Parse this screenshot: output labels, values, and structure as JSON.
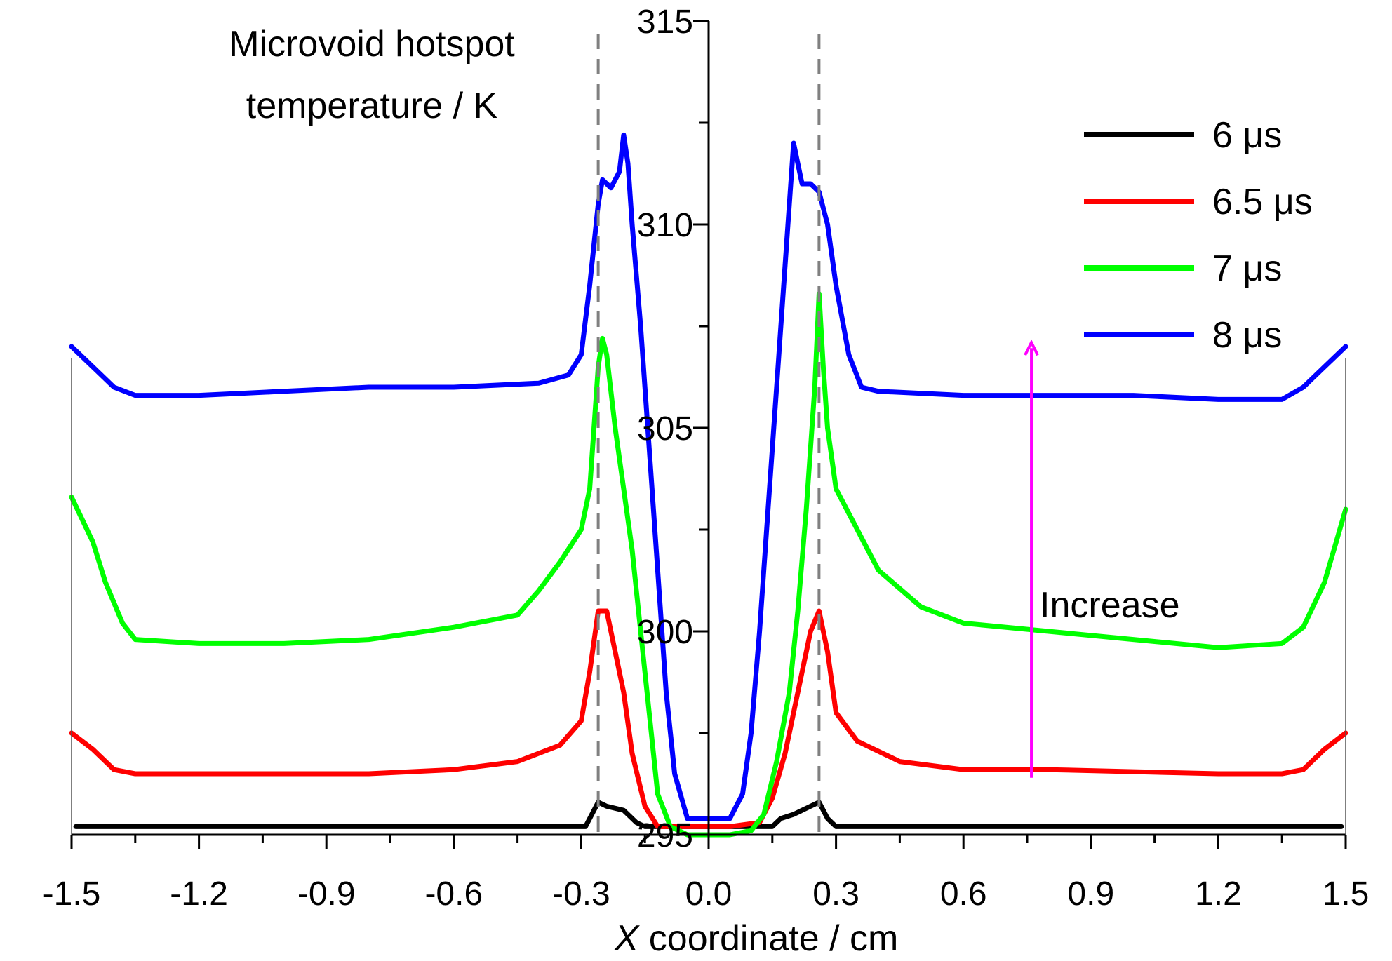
{
  "chart_data": {
    "type": "line",
    "title": "",
    "xlabel": "X coordinate / cm",
    "xlabel_italic": "X",
    "xlabel_rest": " coordinate / cm",
    "ylabel": "Microvoid hotspot temperature / K",
    "ylabel_lines": [
      "Microvoid hotspot",
      "temperature / K"
    ],
    "xlim": [
      -1.5,
      1.5
    ],
    "ylim": [
      295,
      315
    ],
    "x_ticks": [
      "-1.5",
      "-1.2",
      "-0.9",
      "-0.6",
      "-0.3",
      "0.0",
      "0.3",
      "0.6",
      "0.9",
      "1.2",
      "1.5"
    ],
    "y_ticks": [
      "295",
      "300",
      "305",
      "310",
      "315"
    ],
    "grid": false,
    "legend_position": "top-right",
    "annotation": {
      "text": "Increase",
      "arrow_color": "#ff00ff",
      "x": 0.76,
      "y_from": 296.4,
      "y_to": 307.1
    },
    "reference_lines": {
      "style": "dashed",
      "color": "#808080",
      "x": [
        -0.26,
        0.26
      ]
    },
    "series": [
      {
        "name": "6 μs",
        "color": "#000000",
        "points": [
          [
            -1.49,
            295.2
          ],
          [
            -0.29,
            295.2
          ],
          [
            -0.26,
            295.8
          ],
          [
            -0.24,
            295.7
          ],
          [
            -0.2,
            295.6
          ],
          [
            -0.17,
            295.3
          ],
          [
            -0.15,
            295.2
          ],
          [
            -0.08,
            295.2
          ],
          [
            0.08,
            295.2
          ],
          [
            0.15,
            295.2
          ],
          [
            0.17,
            295.4
          ],
          [
            0.2,
            295.5
          ],
          [
            0.24,
            295.7
          ],
          [
            0.26,
            295.8
          ],
          [
            0.28,
            295.4
          ],
          [
            0.3,
            295.2
          ],
          [
            1.49,
            295.2
          ]
        ]
      },
      {
        "name": "6.5 μs",
        "color": "#ff0000",
        "points": [
          [
            -1.5,
            297.5
          ],
          [
            -1.45,
            297.1
          ],
          [
            -1.4,
            296.6
          ],
          [
            -1.35,
            296.5
          ],
          [
            -1.2,
            296.5
          ],
          [
            -0.8,
            296.5
          ],
          [
            -0.6,
            296.6
          ],
          [
            -0.45,
            296.8
          ],
          [
            -0.35,
            297.2
          ],
          [
            -0.3,
            297.8
          ],
          [
            -0.28,
            299.0
          ],
          [
            -0.26,
            300.5
          ],
          [
            -0.24,
            300.5
          ],
          [
            -0.22,
            299.5
          ],
          [
            -0.2,
            298.5
          ],
          [
            -0.18,
            297.0
          ],
          [
            -0.15,
            295.7
          ],
          [
            -0.12,
            295.2
          ],
          [
            -0.05,
            295.2
          ],
          [
            0.05,
            295.2
          ],
          [
            0.12,
            295.3
          ],
          [
            0.15,
            295.9
          ],
          [
            0.18,
            297.0
          ],
          [
            0.2,
            298.0
          ],
          [
            0.22,
            299.0
          ],
          [
            0.24,
            300.0
          ],
          [
            0.26,
            300.5
          ],
          [
            0.28,
            299.5
          ],
          [
            0.3,
            298.0
          ],
          [
            0.35,
            297.3
          ],
          [
            0.45,
            296.8
          ],
          [
            0.6,
            296.6
          ],
          [
            0.8,
            296.6
          ],
          [
            1.2,
            296.5
          ],
          [
            1.35,
            296.5
          ],
          [
            1.4,
            296.6
          ],
          [
            1.45,
            297.1
          ],
          [
            1.5,
            297.5
          ]
        ]
      },
      {
        "name": "7 μs",
        "color": "#00ff00",
        "points": [
          [
            -1.5,
            303.3
          ],
          [
            -1.45,
            302.2
          ],
          [
            -1.42,
            301.2
          ],
          [
            -1.38,
            300.2
          ],
          [
            -1.35,
            299.8
          ],
          [
            -1.2,
            299.7
          ],
          [
            -1.0,
            299.7
          ],
          [
            -0.8,
            299.8
          ],
          [
            -0.6,
            300.1
          ],
          [
            -0.45,
            300.4
          ],
          [
            -0.4,
            301.0
          ],
          [
            -0.35,
            301.7
          ],
          [
            -0.3,
            302.5
          ],
          [
            -0.28,
            303.5
          ],
          [
            -0.27,
            305.0
          ],
          [
            -0.26,
            306.5
          ],
          [
            -0.25,
            307.2
          ],
          [
            -0.24,
            306.8
          ],
          [
            -0.22,
            305.0
          ],
          [
            -0.2,
            303.5
          ],
          [
            -0.18,
            302.0
          ],
          [
            -0.16,
            300.0
          ],
          [
            -0.14,
            298.0
          ],
          [
            -0.12,
            296.0
          ],
          [
            -0.09,
            295.2
          ],
          [
            -0.05,
            295.0
          ],
          [
            0.05,
            295.0
          ],
          [
            0.1,
            295.1
          ],
          [
            0.13,
            295.5
          ],
          [
            0.16,
            296.8
          ],
          [
            0.19,
            298.5
          ],
          [
            0.21,
            300.5
          ],
          [
            0.23,
            303.0
          ],
          [
            0.25,
            306.0
          ],
          [
            0.26,
            308.3
          ],
          [
            0.27,
            306.5
          ],
          [
            0.28,
            305.0
          ],
          [
            0.3,
            303.5
          ],
          [
            0.35,
            302.5
          ],
          [
            0.4,
            301.5
          ],
          [
            0.5,
            300.6
          ],
          [
            0.6,
            300.2
          ],
          [
            0.8,
            300.0
          ],
          [
            1.0,
            299.8
          ],
          [
            1.2,
            299.6
          ],
          [
            1.35,
            299.7
          ],
          [
            1.4,
            300.1
          ],
          [
            1.45,
            301.2
          ],
          [
            1.5,
            303.0
          ]
        ]
      },
      {
        "name": "8 μs",
        "color": "#0000ff",
        "points": [
          [
            -1.5,
            307.0
          ],
          [
            -1.45,
            306.5
          ],
          [
            -1.4,
            306.0
          ],
          [
            -1.35,
            305.8
          ],
          [
            -1.2,
            305.8
          ],
          [
            -1.0,
            305.9
          ],
          [
            -0.8,
            306.0
          ],
          [
            -0.6,
            306.0
          ],
          [
            -0.4,
            306.1
          ],
          [
            -0.33,
            306.3
          ],
          [
            -0.3,
            306.8
          ],
          [
            -0.28,
            308.5
          ],
          [
            -0.26,
            310.5
          ],
          [
            -0.25,
            311.1
          ],
          [
            -0.23,
            310.9
          ],
          [
            -0.21,
            311.3
          ],
          [
            -0.2,
            312.2
          ],
          [
            -0.19,
            311.5
          ],
          [
            -0.18,
            310.0
          ],
          [
            -0.16,
            307.5
          ],
          [
            -0.14,
            304.5
          ],
          [
            -0.12,
            301.5
          ],
          [
            -0.1,
            298.5
          ],
          [
            -0.08,
            296.5
          ],
          [
            -0.05,
            295.4
          ],
          [
            0.05,
            295.4
          ],
          [
            0.08,
            296.0
          ],
          [
            0.1,
            297.5
          ],
          [
            0.12,
            300.0
          ],
          [
            0.14,
            303.0
          ],
          [
            0.16,
            306.0
          ],
          [
            0.18,
            309.0
          ],
          [
            0.2,
            312.0
          ],
          [
            0.21,
            311.5
          ],
          [
            0.22,
            311.0
          ],
          [
            0.24,
            311.0
          ],
          [
            0.26,
            310.8
          ],
          [
            0.28,
            310.0
          ],
          [
            0.3,
            308.5
          ],
          [
            0.33,
            306.8
          ],
          [
            0.36,
            306.0
          ],
          [
            0.4,
            305.9
          ],
          [
            0.6,
            305.8
          ],
          [
            0.8,
            305.8
          ],
          [
            1.0,
            305.8
          ],
          [
            1.2,
            305.7
          ],
          [
            1.35,
            305.7
          ],
          [
            1.4,
            306.0
          ],
          [
            1.45,
            306.5
          ],
          [
            1.5,
            307.0
          ]
        ]
      }
    ]
  }
}
